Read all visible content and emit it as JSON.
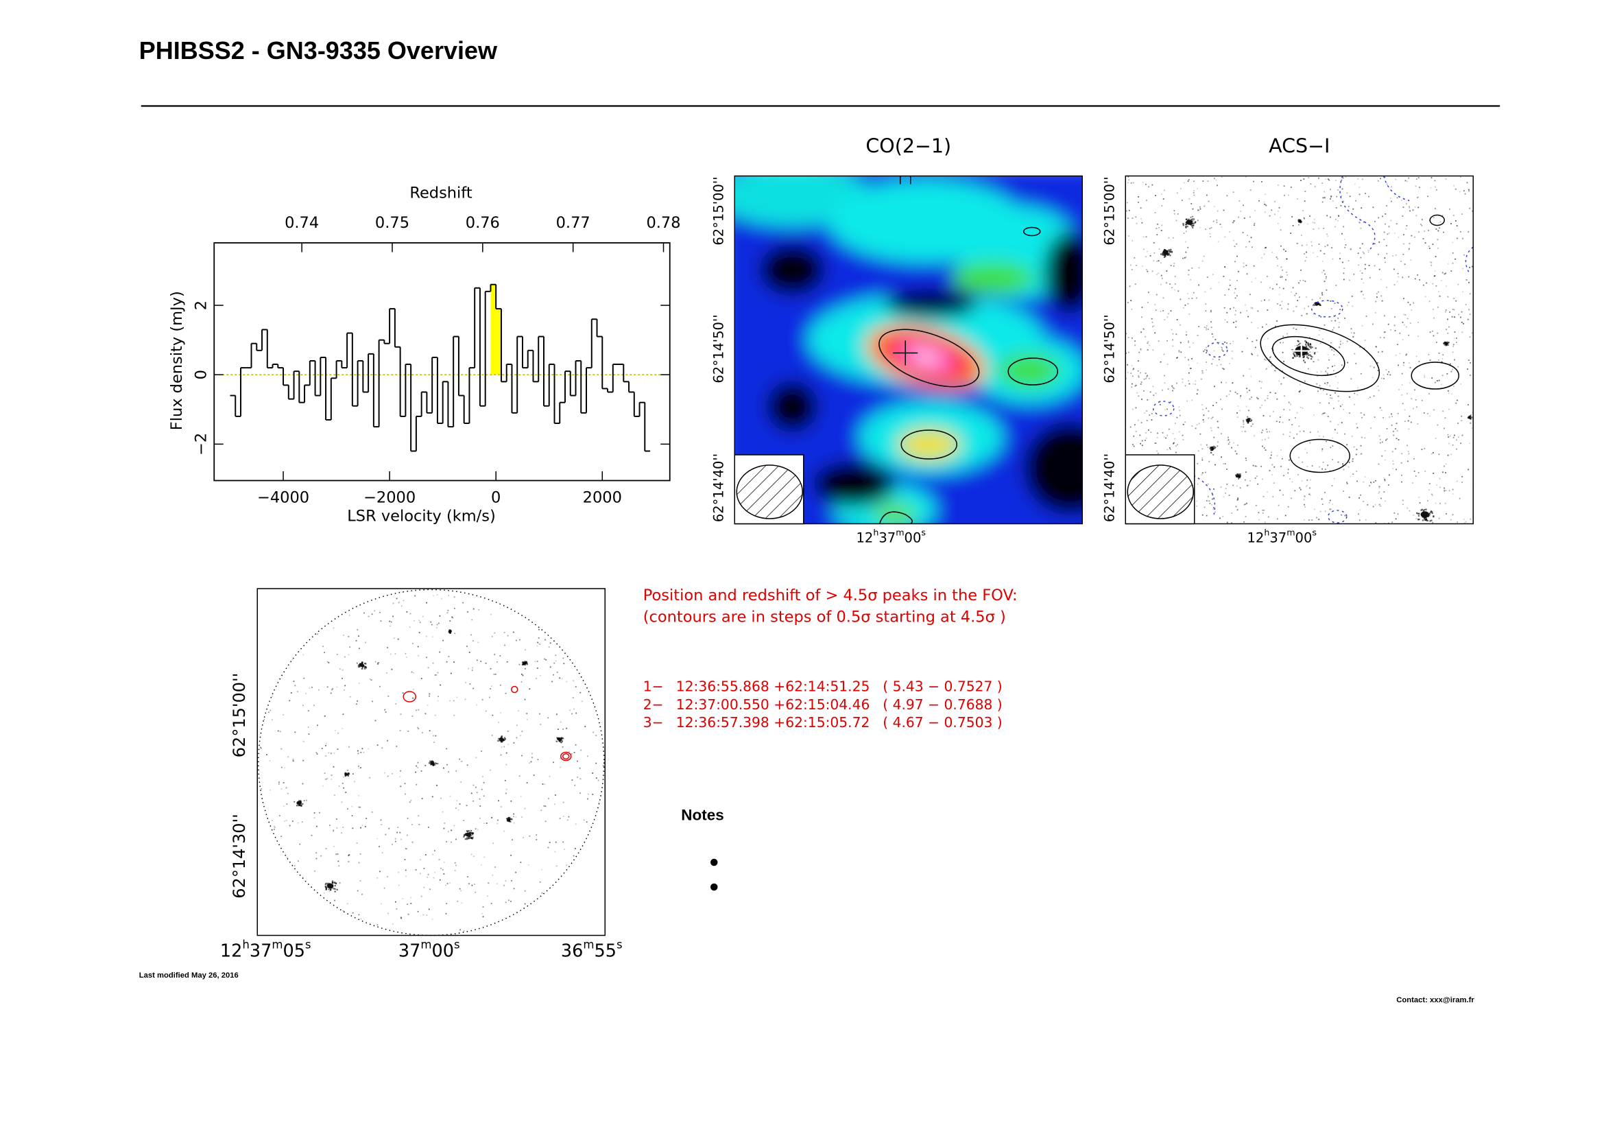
{
  "header": {
    "title": "PHIBSS2 - GN3-9335 Overview"
  },
  "chart_data": {
    "type": "step",
    "xlabel": "LSR velocity (km/s)",
    "ylabel": "Flux density (mJy)",
    "x2label": "Redshift",
    "x": [
      -4950,
      -4850,
      -4750,
      -4650,
      -4550,
      -4450,
      -4350,
      -4250,
      -4150,
      -4050,
      -3950,
      -3850,
      -3750,
      -3650,
      -3550,
      -3450,
      -3350,
      -3250,
      -3150,
      -3050,
      -2950,
      -2850,
      -2750,
      -2650,
      -2550,
      -2450,
      -2350,
      -2250,
      -2150,
      -2050,
      -1950,
      -1850,
      -1750,
      -1650,
      -1550,
      -1450,
      -1350,
      -1250,
      -1150,
      -1050,
      -950,
      -850,
      -750,
      -650,
      -550,
      -450,
      -350,
      -250,
      -150,
      -50,
      50,
      150,
      250,
      350,
      450,
      550,
      650,
      750,
      850,
      950,
      1050,
      1150,
      1250,
      1350,
      1450,
      1550,
      1650,
      1750,
      1850,
      1950,
      2050,
      2150,
      2250,
      2350,
      2450,
      2550,
      2650,
      2750,
      2850
    ],
    "values": [
      -0.6,
      -1.2,
      0.2,
      0.2,
      0.9,
      0.7,
      1.3,
      0.2,
      0.3,
      0.2,
      -0.3,
      -0.7,
      0.1,
      -0.8,
      -0.3,
      0.4,
      -0.6,
      0.5,
      -1.3,
      -0.1,
      0.4,
      0.2,
      1.2,
      -0.9,
      0.4,
      -0.5,
      0.6,
      -1.5,
      1.0,
      0.9,
      1.9,
      0.8,
      -1.2,
      0.3,
      -2.2,
      -1.2,
      -0.5,
      -1.1,
      0.5,
      -1.4,
      -0.2,
      -1.5,
      1.1,
      -0.6,
      -1.4,
      0.2,
      2.5,
      -0.9,
      2.4,
      2.6,
      1.9,
      -0.2,
      0.3,
      -1.1,
      1.1,
      0.2,
      0.7,
      -0.2,
      1.1,
      -0.9,
      0.3,
      -1.4,
      -0.8,
      0.1,
      -0.6,
      0.4,
      -1.1,
      0.2,
      1.6,
      1.1,
      -0.4,
      -0.5,
      0.3,
      0.3,
      -0.2,
      -0.5,
      -1.2,
      -0.8,
      -2.2
    ],
    "color": "#000000",
    "highlight_color": "#ffff00",
    "highlight_range": [
      -100,
      100
    ],
    "baseline_color": "#b8b800",
    "xlim": [
      -5300,
      3270
    ],
    "ylim": [
      -3.05,
      3.8
    ],
    "xticks": [
      {
        "value": -4000,
        "label": "−4000"
      },
      {
        "value": -2000,
        "label": "−2000"
      },
      0,
      2000
    ],
    "yticks": [
      {
        "value": -2,
        "label": "−2"
      },
      0,
      2
    ],
    "x2lim": [
      0.7303,
      0.7807
    ],
    "x2ticks": [
      0.74,
      0.75,
      0.76,
      0.77,
      0.78
    ]
  },
  "maps": [
    {
      "title": "CO(2−1)",
      "dec_labels": [
        "62°15'00''",
        "62°14'50''",
        "62°14'40''"
      ],
      "ra_label": [
        "12",
        "h",
        "37",
        "m",
        "00",
        "s"
      ]
    },
    {
      "title": "ACS−I",
      "dec_labels": [
        "62°15'00''",
        "62°14'50''",
        "62°14'40''"
      ],
      "ra_label": [
        "12",
        "h",
        "37",
        "m",
        "00",
        "s"
      ]
    }
  ],
  "fov": {
    "dec_labels": [
      "62°15'00''",
      "62°14'30''"
    ],
    "ra_labels": [
      [
        "12",
        "h",
        "37",
        "m",
        "05",
        "s"
      ],
      [
        "37",
        "m",
        "00",
        "s"
      ],
      [
        "36",
        "m",
        "55",
        "s"
      ]
    ]
  },
  "peaks": {
    "heading": [
      "Position and redshift of > 4.5σ peaks in the FOV:",
      "(contours are in steps of 0.5σ starting at 4.5σ )"
    ],
    "rows": [
      [
        "1−",
        "12:36:55.868",
        "+62:14:51.25",
        "( 5.43 − 0.7527 )"
      ],
      [
        "2−",
        "12:37:00.550",
        "+62:15:04.46",
        "( 4.97 − 0.7688 )"
      ],
      [
        "3−",
        "12:36:57.398",
        "+62:15:05.72",
        "( 4.67 − 0.7503 )"
      ]
    ]
  },
  "notes": {
    "title": "Notes"
  },
  "footer": {
    "modified": "Last modified May 26, 2016",
    "contact": "Contact: xxx@iram.fr"
  }
}
